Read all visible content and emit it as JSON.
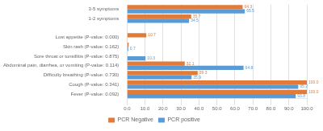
{
  "chart_data": {
    "type": "bar",
    "orientation": "horizontal",
    "categories": [
      "Fever (P-value: 0.092)",
      "Cough (P-value: 0.341)",
      "Difficulty breathing (P-value: 0.730)",
      "Abdominal pain, diarrhea, or vomiting (P-value: 0.114)",
      "Sore throat or tonsillitis (P-value: 0.875)",
      "Skin rash (P-value: 0.162)",
      "Lost appetite (P-value: 0.000)",
      null,
      "1-2 symptoms",
      "3-5 symptoms"
    ],
    "series": [
      {
        "name": "PCR Negative",
        "color": "#E07B39",
        "values": [
          100.0,
          100.0,
          39.3,
          32.1,
          0.0,
          0.9,
          10.7,
          null,
          35.7,
          64.3
        ],
        "value_labels": [
          "100.0",
          "100.0",
          "39.3",
          "32.1",
          null,
          null,
          "10.7",
          null,
          "35.7",
          "64.3"
        ]
      },
      {
        "name": "PCR positive",
        "color": "#5B9BD5",
        "values": [
          93.8,
          95.2,
          35.9,
          64.8,
          10.3,
          0.7,
          0.0,
          null,
          34.5,
          65.5
        ],
        "value_labels": [
          "93.8",
          "95.2",
          "35.9",
          "64.8",
          "10.3",
          "0.7",
          null,
          null,
          "34.5",
          "65.5"
        ]
      }
    ],
    "xlim": [
      0,
      100
    ],
    "xticks": [
      {
        "value": 0,
        "label": "0.0"
      },
      {
        "value": 10,
        "label": "10.0"
      },
      {
        "value": 20,
        "label": "20.0"
      },
      {
        "value": 30,
        "label": "30.0"
      },
      {
        "value": 40,
        "label": "40.0"
      },
      {
        "value": 50,
        "label": "50.0"
      },
      {
        "value": 60,
        "label": "60.0"
      },
      {
        "value": 70,
        "label": "70.0"
      },
      {
        "value": 80,
        "label": "80.0"
      },
      {
        "value": 90,
        "label": "90.0"
      },
      {
        "value": 100,
        "label": "100.0"
      }
    ],
    "grid": true,
    "legend": "bottom",
    "data_labels": true
  }
}
